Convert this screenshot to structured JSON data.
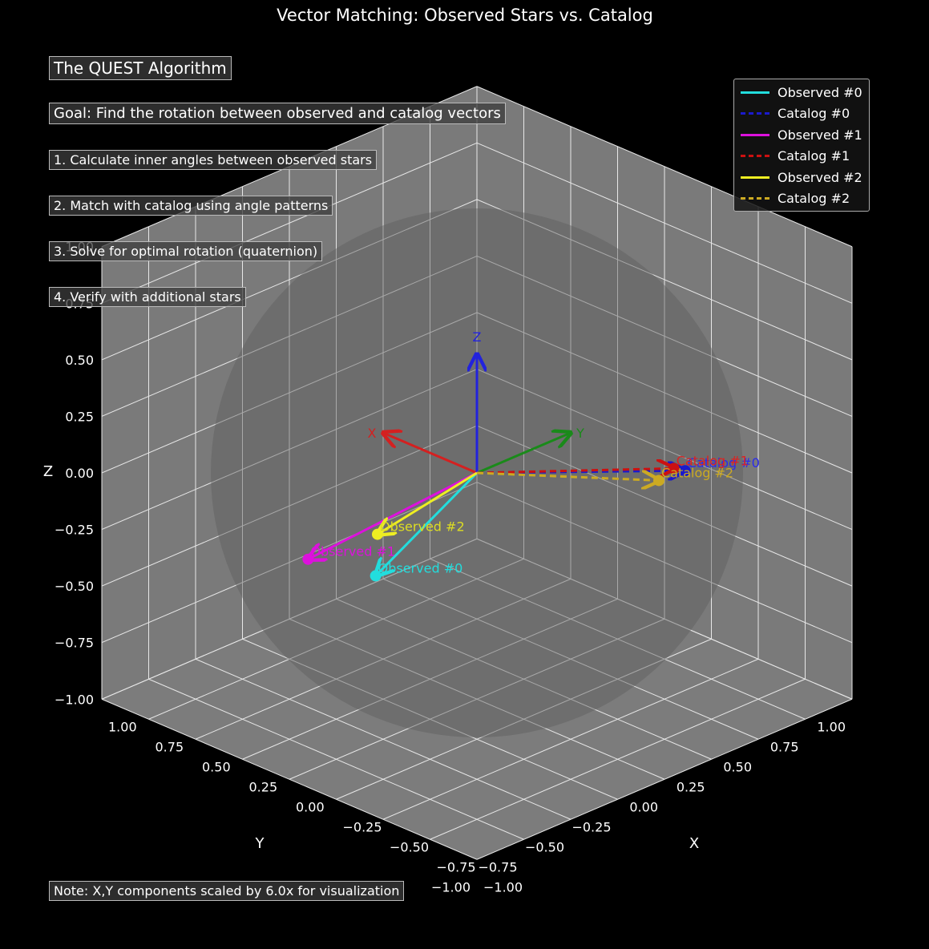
{
  "chart_data": {
    "type": "scatter",
    "title": "Vector Matching: Observed Stars vs. Catalog",
    "xlabel": "X",
    "ylabel": "Y",
    "zlabel": "Z",
    "xlim": [
      -1,
      1
    ],
    "ylim": [
      -1,
      1
    ],
    "zlim": [
      -1,
      1
    ],
    "grid": true,
    "legend_position": "top-right",
    "ticks": {
      "x": [
        "−1.00",
        "−0.75",
        "−0.50",
        "−0.25",
        "0.00",
        "0.25",
        "0.50",
        "0.75",
        "1.00"
      ],
      "y": [
        "−1.00",
        "−0.75",
        "−0.50",
        "−0.25",
        "0.00",
        "0.25",
        "0.50",
        "0.75",
        "1.00"
      ],
      "z": [
        "−1.00",
        "−0.75",
        "−0.50",
        "−0.25",
        "0.00",
        "0.25",
        "0.50",
        "0.75",
        "1.00"
      ]
    },
    "reference_axes": [
      {
        "label": "X",
        "vector": [
          0.5,
          0,
          0
        ],
        "color": "#d42020"
      },
      {
        "label": "Y",
        "vector": [
          0,
          0.5,
          0
        ],
        "color": "#1a8a1a"
      },
      {
        "label": "Z",
        "vector": [
          0,
          0,
          0.5
        ],
        "color": "#2222dd"
      }
    ],
    "series": [
      {
        "name": "Observed #0",
        "vector": [
          0.87,
          0.33,
          -0.88
        ],
        "color": "#22dddd",
        "style": "solid",
        "label_color": "#22dddd"
      },
      {
        "name": "Catalog #0",
        "vector": [
          -0.16,
          0.95,
          -0.27
        ],
        "color": "#1a1acc",
        "style": "dashed",
        "label_color": "#2a2aee"
      },
      {
        "name": "Observed #1",
        "vector": [
          0.97,
          0.07,
          -0.75
        ],
        "color": "#dd11dd",
        "style": "solid",
        "label_color": "#dd11dd"
      },
      {
        "name": "Catalog #1",
        "vector": [
          -0.13,
          0.92,
          -0.26
        ],
        "color": "#cc1111",
        "style": "dashed",
        "label_color": "#dd2222"
      },
      {
        "name": "Observed #2",
        "vector": [
          0.63,
          0.1,
          -0.53
        ],
        "color": "#eeee22",
        "style": "solid",
        "label_color": "#dddd22"
      },
      {
        "name": "Catalog #2",
        "vector": [
          -0.25,
          0.72,
          -0.2
        ],
        "color": "#ccaa22",
        "style": "dashed",
        "label_color": "#ccaa22"
      }
    ]
  },
  "annotations": {
    "heading": "The QUEST Algorithm",
    "goal": "Goal: Find the rotation between observed and catalog vectors",
    "step1": "1. Calculate inner angles between observed stars",
    "step2": "2. Match with catalog using angle patterns",
    "step3": "3. Solve for optimal rotation (quaternion)",
    "step4": "4. Verify with additional stars",
    "note": "Note: X,Y components scaled by 6.0x for visualization"
  }
}
